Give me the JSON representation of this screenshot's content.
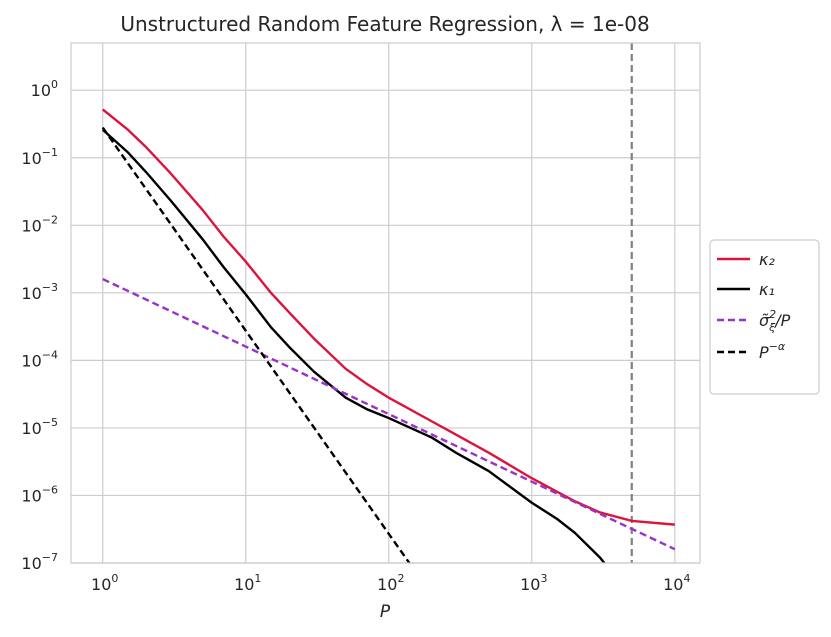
{
  "chart_data": {
    "type": "line",
    "title": "Unstructured Random Feature Regression, λ = 1e-08",
    "xlabel": "P",
    "ylabel": "",
    "xscale": "log",
    "yscale": "log",
    "xlim": [
      0.6,
      15000
    ],
    "ylim": [
      1e-07,
      5
    ],
    "grid": true,
    "legend_position": "right-outside",
    "x_ticks": [
      {
        "value": 1,
        "base": "10",
        "exp": "0"
      },
      {
        "value": 10,
        "base": "10",
        "exp": "1"
      },
      {
        "value": 100,
        "base": "10",
        "exp": "2"
      },
      {
        "value": 1000,
        "base": "10",
        "exp": "3"
      },
      {
        "value": 10000,
        "base": "10",
        "exp": "4"
      }
    ],
    "y_ticks": [
      {
        "value": 1,
        "base": "10",
        "exp": "0"
      },
      {
        "value": 0.1,
        "base": "10",
        "exp": "−1"
      },
      {
        "value": 0.01,
        "base": "10",
        "exp": "−2"
      },
      {
        "value": 0.001,
        "base": "10",
        "exp": "−3"
      },
      {
        "value": 0.0001,
        "base": "10",
        "exp": "−4"
      },
      {
        "value": 1e-05,
        "base": "10",
        "exp": "−5"
      },
      {
        "value": 1e-06,
        "base": "10",
        "exp": "−6"
      },
      {
        "value": 1e-07,
        "base": "10",
        "exp": "−7"
      }
    ],
    "vertical_line": {
      "x": 5000,
      "color": "#808080",
      "style": "dashed"
    },
    "series": [
      {
        "name": "κ₂",
        "color": "#DC143C",
        "style": "solid",
        "x": [
          1,
          1.5,
          2,
          3,
          5,
          7,
          10,
          15,
          20,
          30,
          50,
          70,
          100,
          200,
          300,
          500,
          1000,
          2000,
          3000,
          5000,
          10000
        ],
        "y": [
          0.52,
          0.26,
          0.145,
          0.058,
          0.0168,
          0.0068,
          0.0029,
          0.001,
          0.00052,
          0.00021,
          7.5e-05,
          4.5e-05,
          2.8e-05,
          1.25e-05,
          7.8e-06,
          4.3e-06,
          1.8e-06,
          8.2e-07,
          5.6e-07,
          4.2e-07,
          3.7e-07
        ]
      },
      {
        "name": "κ₁",
        "color": "#000000",
        "style": "solid",
        "x": [
          1,
          1.5,
          2,
          3,
          5,
          7,
          10,
          15,
          20,
          30,
          50,
          70,
          100,
          200,
          300,
          500,
          1000,
          1500,
          2000,
          3000,
          3500
        ],
        "y": [
          0.26,
          0.12,
          0.062,
          0.023,
          0.0062,
          0.0024,
          0.00095,
          0.00031,
          0.00016,
          6.8e-05,
          2.8e-05,
          1.9e-05,
          1.4e-05,
          7.2e-06,
          4.2e-06,
          2.3e-06,
          7.8e-07,
          4.5e-07,
          2.8e-07,
          1.2e-07,
          8e-08
        ]
      },
      {
        "name": "σ̃²_ξ/P",
        "label_main": "σ̃",
        "label_sup": "2",
        "label_sub": "ξ",
        "label_suffix": "/P",
        "color": "#9932CC",
        "style": "dashed",
        "x": [
          1,
          10000
        ],
        "y": [
          0.0016,
          1.6e-07
        ]
      },
      {
        "name": "P⁻ᵅ",
        "label_main": "P",
        "label_sup": "−α",
        "color": "#000000",
        "style": "dashed",
        "x": [
          1,
          150
        ],
        "y": [
          0.28,
          8e-08
        ]
      }
    ]
  }
}
